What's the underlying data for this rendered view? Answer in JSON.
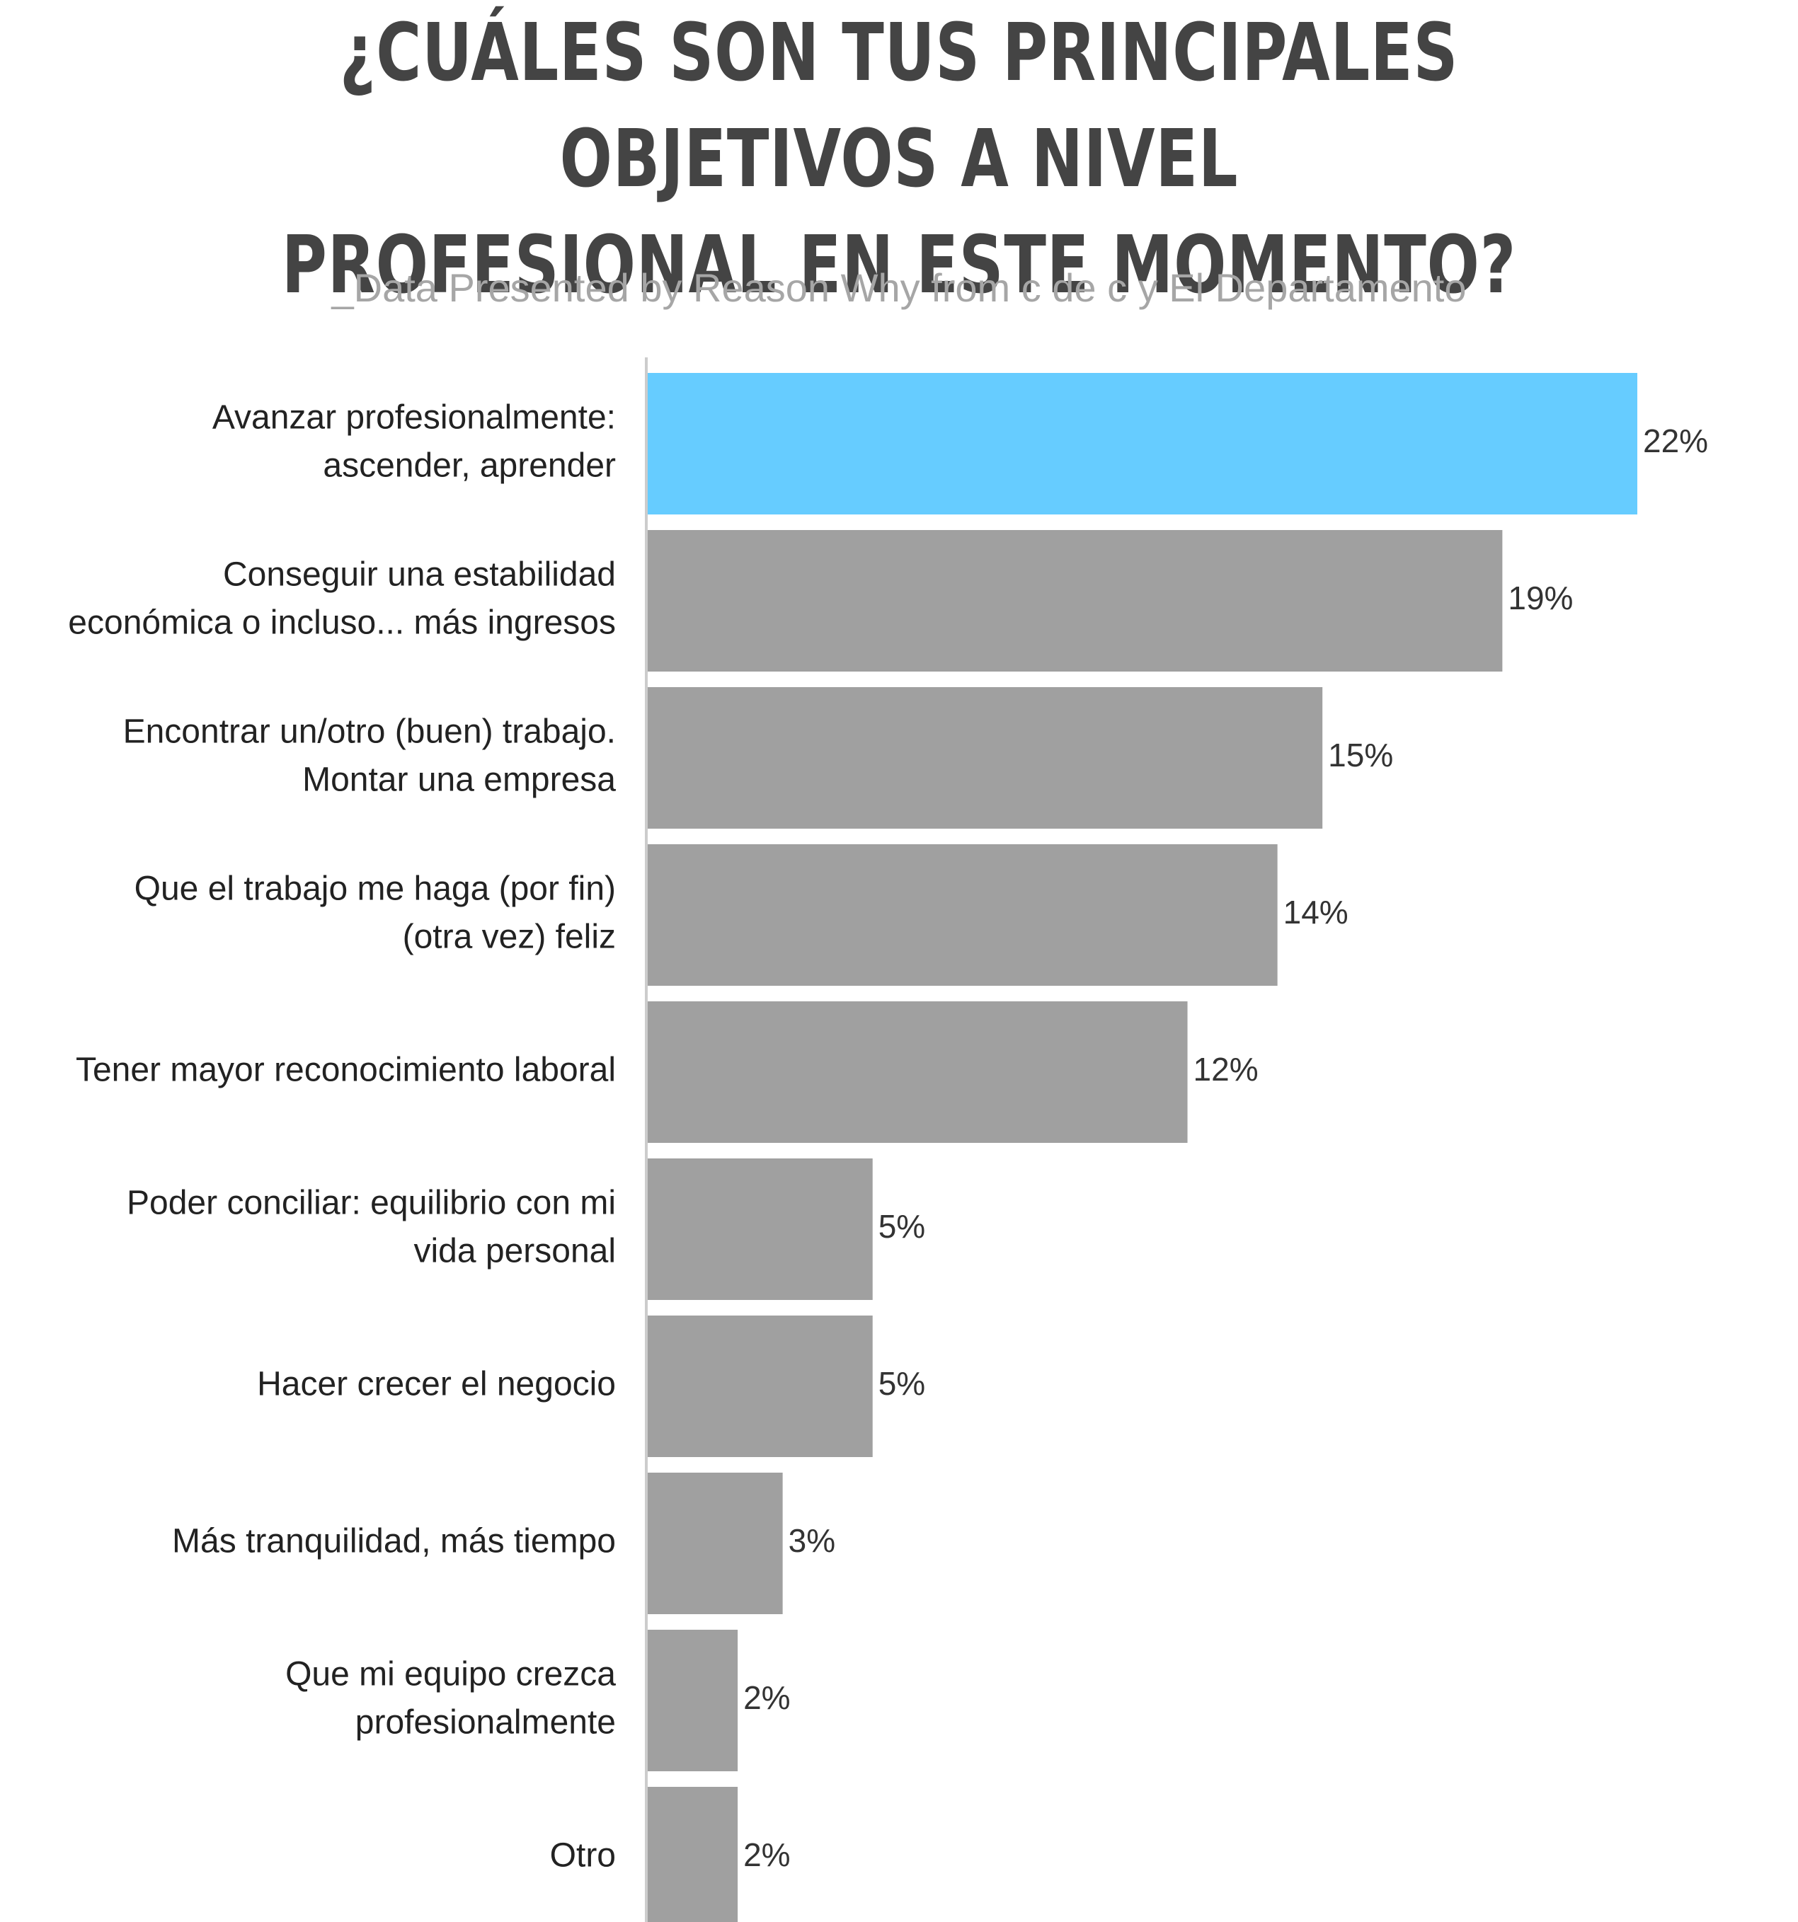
{
  "chart_data": {
    "type": "bar",
    "orientation": "horizontal",
    "title": "¿CUÁLES SON TUS PRINCIPALES OBJETIVOS A NIVEL PROFESIONAL EN ESTE MOMENTO?",
    "subtitle": "_Data Presented by Reason Why from c de c y El Departamento",
    "categories": [
      [
        "Avanzar profesionalmente:",
        "ascender, aprender"
      ],
      [
        "Conseguir una estabilidad",
        "económica o incluso... más ingresos"
      ],
      [
        "Encontrar un/otro (buen) trabajo.",
        "Montar una empresa"
      ],
      [
        "Que el trabajo me haga (por fin)",
        "(otra vez) feliz"
      ],
      [
        "Tener mayor reconocimiento laboral"
      ],
      [
        "Poder conciliar: equilibrio con mi",
        "vida personal"
      ],
      [
        "Hacer crecer el negocio"
      ],
      [
        "Más tranquilidad, más tiempo"
      ],
      [
        "Que mi equipo crezca",
        "profesionalmente"
      ],
      [
        "Otro"
      ]
    ],
    "values": [
      22,
      19,
      15,
      14,
      12,
      5,
      5,
      3,
      2,
      2
    ],
    "value_labels": [
      "22%",
      "19%",
      "15%",
      "14%",
      "12%",
      "5%",
      "5%",
      "3%",
      "2%",
      "2%"
    ],
    "unit": "%",
    "xlim": [
      0,
      22
    ],
    "grid": false,
    "legend": "none",
    "colors": {
      "highlight": "#66ccff",
      "bar": "#a0a0a0",
      "axis": "#cccccc",
      "title": "#444444",
      "subtitle": "#a6a6a6"
    }
  }
}
